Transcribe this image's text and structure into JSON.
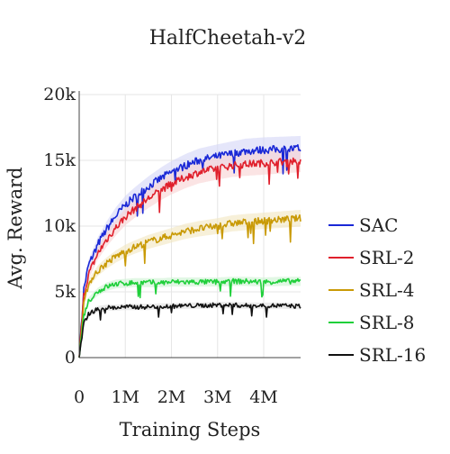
{
  "chart_data": {
    "type": "line",
    "title": "HalfCheetah-v2",
    "xlabel": "Training Steps",
    "ylabel": "Avg. Reward",
    "xlim": [
      0,
      4800000
    ],
    "ylim": [
      0,
      20000
    ],
    "x_ticks": [
      0,
      1000000,
      2000000,
      3000000,
      4000000
    ],
    "x_tick_labels": [
      "0",
      "1M",
      "2M",
      "3M",
      "4M"
    ],
    "y_ticks": [
      0,
      5000,
      10000,
      15000,
      20000
    ],
    "y_tick_labels": [
      "0",
      "5k",
      "10k",
      "15k",
      "20k"
    ],
    "grid": true,
    "legend_position": "right",
    "x": [
      0,
      100000,
      200000,
      400000,
      600000,
      800000,
      1000000,
      1200000,
      1500000,
      1800000,
      2000000,
      2300000,
      2600000,
      3000000,
      3300000,
      3600000,
      4000000,
      4400000,
      4800000
    ],
    "series": [
      {
        "name": "SAC",
        "color": "#1a28d6",
        "band_color": "#d4d6f6",
        "values": [
          0,
          5200,
          7000,
          8600,
          9800,
          10800,
          11600,
          12200,
          13000,
          13700,
          14100,
          14600,
          15000,
          15300,
          15500,
          15700,
          15800,
          15850,
          15900
        ]
      },
      {
        "name": "SRL-2",
        "color": "#e0202c",
        "band_color": "#f8d2d2",
        "values": [
          0,
          4700,
          6300,
          7900,
          9000,
          9900,
          10700,
          11300,
          12100,
          12800,
          13200,
          13700,
          14100,
          14400,
          14600,
          14700,
          14800,
          14900,
          15000
        ]
      },
      {
        "name": "SRL-4",
        "color": "#c99a06",
        "band_color": "#f2e6c0",
        "values": [
          0,
          4000,
          5600,
          6600,
          7200,
          7700,
          8100,
          8400,
          8800,
          9100,
          9300,
          9600,
          9800,
          10000,
          10200,
          10300,
          10400,
          10500,
          10600
        ]
      },
      {
        "name": "SRL-8",
        "color": "#1fcf3a",
        "band_color": "#cdf2d2",
        "values": [
          0,
          3200,
          4300,
          5000,
          5400,
          5600,
          5650,
          5700,
          5700,
          5700,
          5750,
          5750,
          5750,
          5750,
          5800,
          5800,
          5750,
          5800,
          5800
        ]
      },
      {
        "name": "SRL-16",
        "color": "#111111",
        "band_color": "#dddddd",
        "values": [
          0,
          2600,
          3300,
          3700,
          3800,
          3800,
          3850,
          3850,
          3850,
          3900,
          3900,
          3950,
          3950,
          4000,
          4000,
          3950,
          3950,
          3950,
          3900
        ]
      }
    ]
  }
}
